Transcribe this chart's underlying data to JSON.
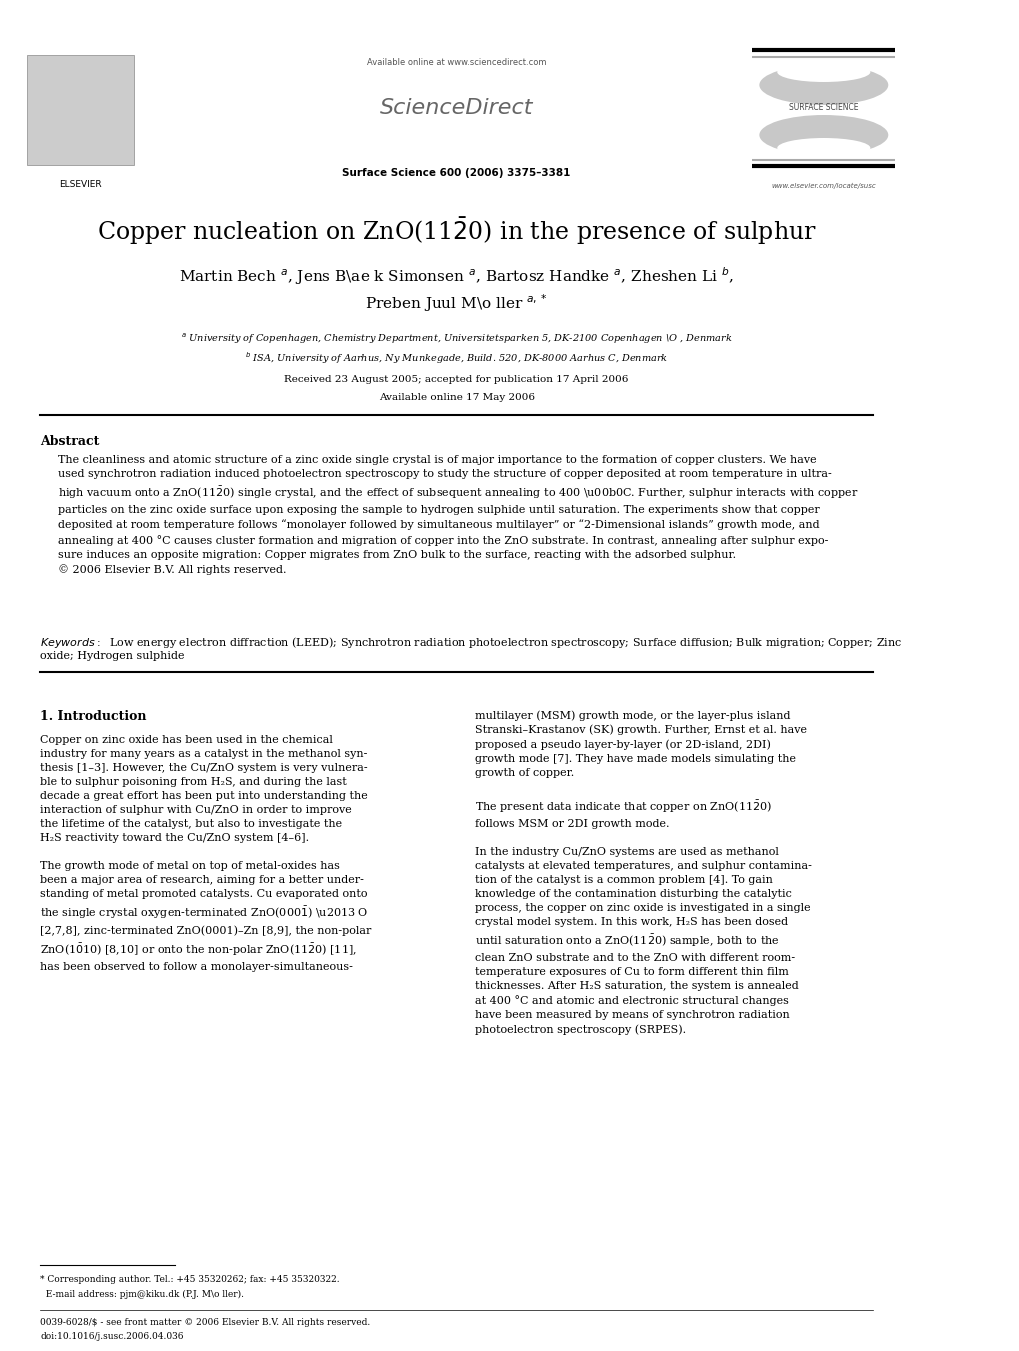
{
  "background_color": "#ffffff",
  "page_width": 10.2,
  "page_height": 13.51,
  "header": {
    "available_online_text": "Available online at www.sciencedirect.com",
    "sciencedirect_text": "ScienceDirect",
    "journal_name": "Surface Science 600 (2006) 3375–3381",
    "journal_logo_text": "SURFACE SCIENCE",
    "elsevier_text": "ELSEVIER",
    "website_text": "www.elsevier.com/locate/susc"
  },
  "title": "Copper nucleation on ZnO(11$\\bar{2}$0) in the presence of sulphur",
  "received_text": "Received 23 August 2005; accepted for publication 17 April 2006",
  "available_text": "Available online 17 May 2006",
  "abstract_title": "Abstract",
  "keywords_label": "Keywords:",
  "section1_title": "1. Introduction",
  "issn_text": "0039-6028/$ - see front matter © 2006 Elsevier B.V. All rights reserved.\ndoi:10.1016/j.susc.2006.04.036"
}
